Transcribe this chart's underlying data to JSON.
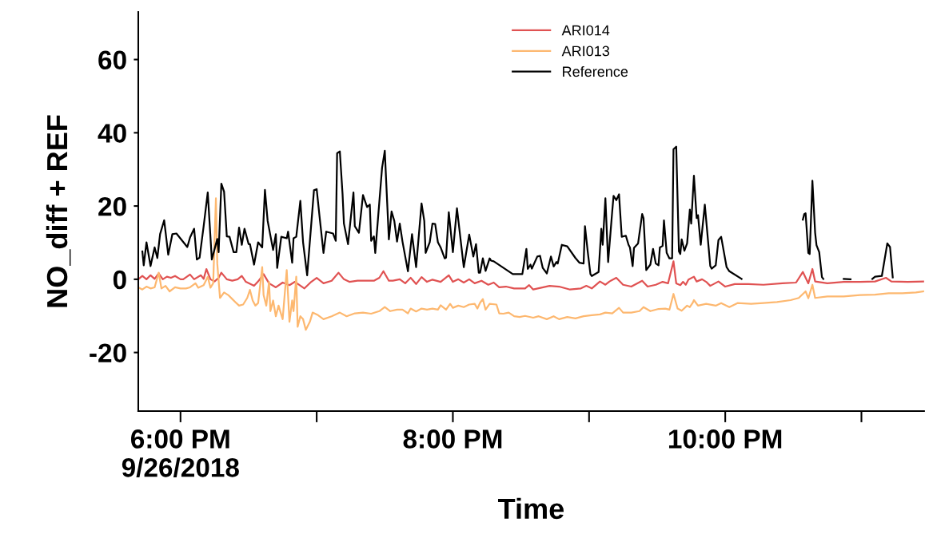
{
  "chart_data": {
    "type": "line",
    "xlabel": "Time",
    "ylabel": "NO_diff + REF",
    "xlim": [
      17.69,
      23.46
    ],
    "ylim": [
      -36,
      73
    ],
    "xticks": [
      {
        "value": 18,
        "label": "6:00 PM\n9/26/2018"
      },
      {
        "value": 19,
        "label": null
      },
      {
        "value": 20,
        "label": "8:00 PM"
      },
      {
        "value": 21,
        "label": null
      },
      {
        "value": 22,
        "label": "10:00 PM"
      },
      {
        "value": 23,
        "label": null
      }
    ],
    "yticks": [
      -20,
      0,
      20,
      40,
      60
    ],
    "grid": false,
    "legend": "top",
    "line_style": "solid",
    "series": [
      {
        "name": "ARI014",
        "color": "#e05252",
        "x": [
          17.69,
          17.72,
          17.75,
          17.78,
          17.81,
          17.84,
          17.87,
          17.9,
          17.93,
          17.96,
          18.0,
          18.02,
          18.07,
          18.1,
          18.15,
          18.17,
          18.19,
          18.22,
          18.25,
          18.28,
          18.3,
          18.34,
          18.38,
          18.42,
          18.45,
          18.48,
          18.54,
          18.57,
          18.61,
          18.65,
          18.7,
          18.75,
          18.8,
          18.84,
          18.91,
          18.96,
          19.0,
          19.05,
          19.11,
          19.16,
          19.2,
          19.24,
          19.3,
          19.36,
          19.42,
          19.46,
          19.49,
          19.53,
          19.56,
          19.61,
          19.65,
          19.69,
          19.73,
          19.77,
          19.81,
          19.85,
          19.91,
          19.97,
          20.0,
          20.04,
          20.08,
          20.12,
          20.16,
          20.21,
          20.26,
          20.3,
          20.34,
          20.39,
          20.45,
          20.53,
          20.56,
          20.59,
          20.65,
          20.71,
          20.78,
          20.86,
          20.94,
          20.98,
          21.02,
          21.08,
          21.12,
          21.15,
          21.2,
          21.25,
          21.31,
          21.39,
          21.43,
          21.49,
          21.54,
          21.58,
          21.62,
          21.64,
          21.67,
          21.69,
          21.71,
          21.73,
          21.77,
          21.79,
          21.83,
          21.86,
          21.89,
          21.95,
          22.0,
          22.07,
          22.17,
          22.28,
          22.42,
          22.52,
          22.57,
          22.61,
          22.64,
          22.66,
          22.75,
          22.87,
          22.99,
          23.1,
          23.18,
          23.22,
          23.34,
          23.46
        ],
        "values": [
          0.0,
          0.9,
          0.0,
          1.1,
          0.1,
          1.6,
          0.0,
          0.7,
          0.4,
          0.9,
          0.0,
          0.0,
          1.3,
          0.0,
          1.1,
          0.1,
          2.8,
          0.0,
          -0.6,
          0.4,
          1.8,
          0.0,
          -0.4,
          0.0,
          0.9,
          -0.7,
          -1.8,
          -0.6,
          1.4,
          -1.1,
          -2.2,
          -0.9,
          -1.6,
          -0.7,
          -2.5,
          -0.7,
          0.4,
          -1.1,
          -0.4,
          1.8,
          0.0,
          -0.7,
          -0.4,
          -0.4,
          -0.4,
          0.4,
          2.2,
          -0.4,
          -0.4,
          0.0,
          -1.1,
          0.4,
          -1.3,
          0.6,
          -0.7,
          -0.1,
          -0.7,
          1.1,
          -0.7,
          0.0,
          -0.9,
          0.0,
          -1.1,
          -0.4,
          -1.5,
          -0.9,
          -2.2,
          -2.0,
          -2.5,
          -2.5,
          -1.6,
          -2.8,
          -2.3,
          -1.8,
          -2.0,
          -2.8,
          -2.5,
          -1.8,
          -2.5,
          -0.6,
          -1.5,
          -0.6,
          0.4,
          -1.5,
          -2.0,
          -0.4,
          -2.0,
          -1.5,
          -0.7,
          -1.1,
          4.9,
          -1.1,
          -1.6,
          -0.7,
          -1.5,
          -0.1,
          0.7,
          -0.6,
          0.0,
          -0.7,
          -1.8,
          -0.6,
          -2.0,
          -1.3,
          -1.3,
          -1.5,
          -1.1,
          -0.9,
          2.0,
          -1.1,
          2.8,
          -0.6,
          -1.1,
          -0.7,
          -0.7,
          -0.6,
          0.4,
          -0.6,
          -0.7,
          -0.6
        ]
      },
      {
        "name": "ARI013",
        "color": "#fdb870",
        "x": [
          17.69,
          17.72,
          17.75,
          17.78,
          17.81,
          17.84,
          17.86,
          17.89,
          17.92,
          17.96,
          18.0,
          18.04,
          18.07,
          18.11,
          18.13,
          18.17,
          18.2,
          18.22,
          18.24,
          18.26,
          18.27,
          18.29,
          18.32,
          18.35,
          18.38,
          18.41,
          18.43,
          18.46,
          18.49,
          18.51,
          18.53,
          18.55,
          18.57,
          18.6,
          18.61,
          18.63,
          18.65,
          18.66,
          18.68,
          18.7,
          18.72,
          18.75,
          18.78,
          18.8,
          18.82,
          18.83,
          18.85,
          18.86,
          18.88,
          18.9,
          18.92,
          18.95,
          18.97,
          19.01,
          19.05,
          19.11,
          19.17,
          19.22,
          19.28,
          19.34,
          19.4,
          19.46,
          19.5,
          19.54,
          19.59,
          19.63,
          19.67,
          19.69,
          19.73,
          19.77,
          19.81,
          19.85,
          19.89,
          19.91,
          19.95,
          19.98,
          20.0,
          20.04,
          20.08,
          20.12,
          20.16,
          20.18,
          20.2,
          20.22,
          20.24,
          20.27,
          20.32,
          20.34,
          20.37,
          20.41,
          20.45,
          20.49,
          20.53,
          20.59,
          20.63,
          20.69,
          20.74,
          20.78,
          20.84,
          20.9,
          20.96,
          21.02,
          21.08,
          21.12,
          21.17,
          21.22,
          21.25,
          21.31,
          21.37,
          21.4,
          21.45,
          21.51,
          21.56,
          21.59,
          21.62,
          21.65,
          21.68,
          21.72,
          21.74,
          21.76,
          21.77,
          21.8,
          21.86,
          21.93,
          21.97,
          22.03,
          22.09,
          22.19,
          22.28,
          22.38,
          22.48,
          22.54,
          22.59,
          22.61,
          22.64,
          22.66,
          22.75,
          22.87,
          22.99,
          23.1,
          23.2,
          23.3,
          23.4,
          23.46
        ],
        "values": [
          -2.2,
          -2.8,
          -2.0,
          -2.5,
          -2.2,
          1.8,
          -2.5,
          -1.8,
          -3.3,
          -2.2,
          -2.5,
          -2.5,
          -2.2,
          -1.1,
          -2.3,
          -1.6,
          0.7,
          -2.3,
          -1.1,
          22.1,
          4.3,
          -5.1,
          -3.6,
          -4.3,
          -5.4,
          -6.5,
          -7.2,
          -6.9,
          -5.1,
          -2.9,
          -5.8,
          -7.2,
          -6.5,
          3.3,
          -4.3,
          -7.2,
          -0.7,
          -8.7,
          -5.8,
          -10.1,
          -7.2,
          -10.9,
          2.5,
          -11.6,
          -5.8,
          -8.7,
          0.7,
          -13.0,
          -10.1,
          -10.9,
          -13.8,
          -11.6,
          -9.1,
          -9.8,
          -10.9,
          -10.1,
          -9.1,
          -10.1,
          -9.3,
          -9.1,
          -9.4,
          -8.7,
          -7.6,
          -8.7,
          -8.3,
          -8.3,
          -9.3,
          -8.0,
          -8.8,
          -8.0,
          -8.3,
          -8.0,
          -8.3,
          -7.1,
          -8.3,
          -6.7,
          -7.8,
          -7.2,
          -7.6,
          -6.9,
          -6.7,
          -8.0,
          -6.4,
          -5.4,
          -8.3,
          -6.7,
          -6.9,
          -9.3,
          -9.4,
          -9.1,
          -10.1,
          -10.3,
          -10.0,
          -10.5,
          -10.1,
          -10.9,
          -10.1,
          -10.9,
          -10.3,
          -10.7,
          -10.1,
          -9.8,
          -9.6,
          -9.1,
          -9.3,
          -7.8,
          -9.1,
          -9.1,
          -8.7,
          -7.6,
          -8.7,
          -8.1,
          -8.0,
          -8.3,
          -4.0,
          -8.0,
          -8.6,
          -7.2,
          -7.6,
          -6.5,
          -5.7,
          -7.2,
          -6.7,
          -7.2,
          -6.5,
          -7.6,
          -6.5,
          -6.7,
          -6.5,
          -6.2,
          -5.7,
          -5.1,
          -3.3,
          -5.2,
          -1.5,
          -5.1,
          -4.7,
          -4.7,
          -4.3,
          -4.2,
          -3.8,
          -3.8,
          -3.6,
          -3.3
        ]
      },
      {
        "name": "Reference",
        "color": "#000000",
        "x": [
          17.72,
          17.73,
          17.75,
          17.78,
          17.81,
          17.83,
          17.85,
          17.88,
          17.91,
          17.94,
          17.97,
          18.05,
          18.07,
          18.1,
          18.12,
          18.14,
          18.17,
          18.2,
          18.23,
          18.27,
          18.28,
          18.3,
          18.32,
          18.34,
          18.36,
          18.39,
          18.41,
          18.43,
          18.45,
          18.47,
          18.5,
          18.51,
          18.54,
          18.57,
          18.6,
          18.62,
          18.64,
          18.68,
          18.7,
          18.71,
          18.74,
          18.78,
          18.79,
          18.82,
          18.83,
          18.85,
          18.88,
          18.9,
          18.93,
          18.98,
          19.0,
          19.02,
          19.05,
          19.07,
          19.12,
          19.14,
          19.15,
          19.17,
          19.19,
          19.2,
          19.23,
          19.27,
          19.28,
          19.31,
          19.34,
          19.37,
          19.39,
          19.4,
          19.42,
          19.43,
          19.48,
          19.5,
          19.53,
          19.55,
          19.57,
          19.59,
          19.61,
          19.63,
          19.67,
          19.7,
          19.73,
          19.77,
          19.79,
          19.8,
          19.83,
          19.85,
          19.87,
          19.89,
          19.91,
          19.94,
          19.95,
          19.97,
          20.0,
          20.03,
          20.08,
          20.12,
          20.15,
          20.17,
          20.19,
          20.2,
          20.22,
          20.24,
          20.27,
          20.28,
          20.3,
          20.44,
          20.51,
          20.54,
          20.55,
          20.57,
          20.58,
          20.62,
          20.64,
          20.66,
          20.69,
          20.72,
          20.74,
          20.76,
          20.77,
          20.8,
          20.84,
          20.9,
          20.93,
          20.96,
          20.97,
          20.99,
          21.01,
          21.02,
          21.07,
          21.09,
          21.1,
          21.12,
          21.14,
          21.17,
          21.18,
          21.2,
          21.22,
          21.24,
          21.27,
          21.29,
          21.3,
          21.32,
          21.33,
          21.36,
          21.39,
          21.4,
          21.42,
          21.45,
          21.47,
          21.49,
          21.51,
          21.52,
          21.54,
          21.55,
          21.57,
          21.59,
          21.61,
          21.62,
          21.64,
          21.66,
          21.67,
          21.68,
          21.7,
          21.72,
          21.74,
          21.75,
          21.77,
          21.79,
          21.8,
          21.82,
          21.85,
          21.89,
          21.9,
          21.93,
          21.95,
          21.97,
          22.01,
          22.03,
          22.12,
          22.3,
          22.57,
          22.58,
          22.59,
          22.61,
          22.62,
          22.64,
          22.66,
          22.67,
          22.69,
          22.71,
          22.72,
          22.8,
          22.87,
          22.92,
          23.0,
          23.08,
          23.1,
          23.15,
          23.19,
          23.21,
          23.23
        ],
        "values": [
          7.6,
          3.8,
          10.1,
          3.6,
          8.7,
          5.8,
          12.3,
          16.1,
          6.7,
          12.3,
          12.5,
          8.8,
          11.4,
          13.8,
          5.4,
          5.9,
          14.5,
          23.7,
          5.4,
          11.0,
          7.4,
          26.1,
          23.9,
          11.7,
          11.6,
          7.4,
          7.4,
          14.1,
          9.4,
          13.8,
          9.6,
          9.6,
          4.0,
          10.1,
          8.7,
          24.4,
          15.9,
          8.0,
          12.3,
          3.1,
          11.6,
          11.2,
          13.0,
          4.5,
          11.2,
          11.6,
          21.4,
          10.1,
          1.1,
          24.3,
          24.6,
          17.5,
          7.2,
          13.0,
          12.5,
          10.5,
          34.4,
          34.9,
          23.2,
          15.2,
          9.6,
          23.7,
          14.5,
          12.7,
          23.0,
          19.7,
          20.4,
          10.5,
          11.7,
          7.2,
          30.4,
          35.1,
          10.9,
          18.5,
          15.9,
          10.3,
          15.2,
          10.3,
          2.2,
          12.3,
          3.3,
          20.7,
          15.9,
          7.2,
          10.1,
          15.2,
          15.1,
          10.1,
          8.7,
          5.7,
          5.9,
          18.3,
          7.4,
          19.4,
          3.3,
          12.2,
          6.2,
          9.6,
          1.8,
          1.8,
          5.7,
          2.3,
          5.7,
          5.1,
          4.9,
          1.4,
          1.4,
          8.3,
          2.8,
          4.0,
          2.9,
          6.2,
          6.4,
          3.1,
          1.6,
          6.2,
          3.5,
          4.7,
          4.3,
          9.4,
          9.0,
          5.8,
          4.5,
          4.3,
          14.5,
          7.6,
          1.4,
          0.9,
          2.0,
          13.8,
          9.4,
          22.1,
          4.7,
          18.5,
          22.8,
          21.6,
          23.2,
          11.6,
          11.9,
          9.4,
          8.7,
          3.6,
          8.6,
          9.8,
          17.8,
          16.7,
          2.5,
          4.0,
          8.3,
          4.3,
          3.8,
          8.7,
          9.1,
          16.1,
          7.2,
          5.7,
          5.7,
          35.5,
          36.2,
          7.6,
          6.9,
          10.9,
          7.8,
          9.8,
          19.0,
          15.2,
          28.3,
          16.7,
          17.5,
          9.4,
          20.4,
          3.6,
          2.9,
          3.8,
          10.7,
          11.6,
          3.3,
          2.2,
          0.1,
          null,
          16.3,
          17.8,
          18.0,
          7.2,
          6.9,
          26.9,
          12.7,
          9.3,
          7.4,
          0.6,
          0.1,
          null,
          0.1,
          0.0,
          null,
          0.1,
          0.7,
          0.9,
          9.8,
          8.8,
          0.5
        ]
      }
    ]
  }
}
